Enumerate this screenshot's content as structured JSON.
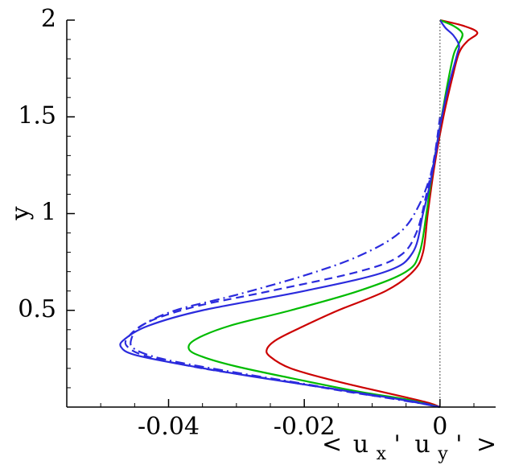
{
  "chart_data": {
    "type": "line",
    "title": "",
    "xlabel": {
      "open": "<",
      "u1": "u",
      "sub1": "x",
      "prime1": "'",
      "u2": "u",
      "sub2": "y",
      "prime2": "'",
      "close": ">"
    },
    "ylabel": "y",
    "xlim": [
      -0.055,
      0.0082
    ],
    "ylim": [
      0,
      2.0
    ],
    "xticks": [
      -0.04,
      -0.02,
      0
    ],
    "xtick_labels": [
      "-0.04",
      "-0.02",
      "0"
    ],
    "yticks": [
      0.5,
      1,
      1.5,
      2
    ],
    "ytick_labels": [
      "0.5",
      "1",
      "1.5",
      "2"
    ],
    "x_minor_step": 0.005,
    "y_minor_step": 0.1,
    "zero_line": true,
    "grid": false,
    "legend": "none",
    "series": [
      {
        "color": "#cc0000",
        "dash": "solid",
        "points": [
          [
            0,
            2.0
          ],
          [
            0.0035,
            1.97
          ],
          [
            0.0055,
            1.935
          ],
          [
            0.004,
            1.89
          ],
          [
            0.0028,
            1.83
          ],
          [
            0.0018,
            1.7
          ],
          [
            0.0005,
            1.5
          ],
          [
            -0.0008,
            1.25
          ],
          [
            -0.0018,
            1.0
          ],
          [
            -0.0025,
            0.8
          ],
          [
            -0.004,
            0.7
          ],
          [
            -0.008,
            0.6
          ],
          [
            -0.015,
            0.5
          ],
          [
            -0.02,
            0.42
          ],
          [
            -0.024,
            0.35
          ],
          [
            -0.0255,
            0.3
          ],
          [
            -0.025,
            0.26
          ],
          [
            -0.022,
            0.2
          ],
          [
            -0.016,
            0.14
          ],
          [
            -0.01,
            0.09
          ],
          [
            -0.005,
            0.05
          ],
          [
            -0.0015,
            0.02
          ],
          [
            0,
            0
          ]
        ]
      },
      {
        "color": "#00bb00",
        "dash": "solid",
        "points": [
          [
            0,
            2.0
          ],
          [
            0.002,
            1.97
          ],
          [
            0.0033,
            1.93
          ],
          [
            0.0028,
            1.88
          ],
          [
            0.002,
            1.82
          ],
          [
            0.001,
            1.65
          ],
          [
            0.0,
            1.45
          ],
          [
            -0.0012,
            1.2
          ],
          [
            -0.002,
            1.0
          ],
          [
            -0.003,
            0.8
          ],
          [
            -0.005,
            0.7
          ],
          [
            -0.012,
            0.6
          ],
          [
            -0.022,
            0.5
          ],
          [
            -0.031,
            0.42
          ],
          [
            -0.036,
            0.35
          ],
          [
            -0.037,
            0.3
          ],
          [
            -0.035,
            0.26
          ],
          [
            -0.03,
            0.21
          ],
          [
            -0.022,
            0.15
          ],
          [
            -0.012,
            0.08
          ],
          [
            -0.005,
            0.04
          ],
          [
            0,
            0
          ]
        ]
      },
      {
        "color": "#2b2bdd",
        "dash": "solid",
        "points": [
          [
            0,
            2.0
          ],
          [
            0.0008,
            1.96
          ],
          [
            0.002,
            1.92
          ],
          [
            0.0028,
            1.87
          ],
          [
            0.0025,
            1.82
          ],
          [
            0.0012,
            1.65
          ],
          [
            0.0,
            1.45
          ],
          [
            -0.0012,
            1.2
          ],
          [
            -0.0025,
            1.0
          ],
          [
            -0.004,
            0.8
          ],
          [
            -0.008,
            0.7
          ],
          [
            -0.02,
            0.6
          ],
          [
            -0.035,
            0.5
          ],
          [
            -0.043,
            0.42
          ],
          [
            -0.0465,
            0.35
          ],
          [
            -0.047,
            0.31
          ],
          [
            -0.045,
            0.27
          ],
          [
            -0.038,
            0.22
          ],
          [
            -0.028,
            0.16
          ],
          [
            -0.015,
            0.09
          ],
          [
            -0.006,
            0.04
          ],
          [
            0,
            0
          ]
        ]
      },
      {
        "color": "#2b2bdd",
        "dash": "dash",
        "points": [
          [
            0.0,
            1.5
          ],
          [
            -0.0008,
            1.3
          ],
          [
            -0.002,
            1.1
          ],
          [
            -0.0035,
            0.9
          ],
          [
            -0.006,
            0.78
          ],
          [
            -0.012,
            0.7
          ],
          [
            -0.025,
            0.6
          ],
          [
            -0.036,
            0.52
          ],
          [
            -0.043,
            0.44
          ],
          [
            -0.046,
            0.36
          ],
          [
            -0.046,
            0.31
          ],
          [
            -0.043,
            0.26
          ],
          [
            -0.035,
            0.2
          ],
          [
            -0.024,
            0.14
          ],
          [
            -0.012,
            0.07
          ],
          [
            -0.004,
            0.03
          ],
          [
            0,
            0
          ]
        ]
      },
      {
        "color": "#2b2bdd",
        "dash": "dashdot",
        "points": [
          [
            0.0,
            1.45
          ],
          [
            -0.001,
            1.25
          ],
          [
            -0.003,
            1.05
          ],
          [
            -0.006,
            0.9
          ],
          [
            -0.012,
            0.78
          ],
          [
            -0.02,
            0.68
          ],
          [
            -0.03,
            0.58
          ],
          [
            -0.039,
            0.5
          ],
          [
            -0.044,
            0.42
          ],
          [
            -0.0455,
            0.35
          ],
          [
            -0.045,
            0.3
          ],
          [
            -0.041,
            0.25
          ],
          [
            -0.032,
            0.19
          ],
          [
            -0.02,
            0.12
          ],
          [
            -0.01,
            0.06
          ],
          [
            -0.003,
            0.02
          ],
          [
            0,
            0
          ]
        ]
      }
    ]
  }
}
